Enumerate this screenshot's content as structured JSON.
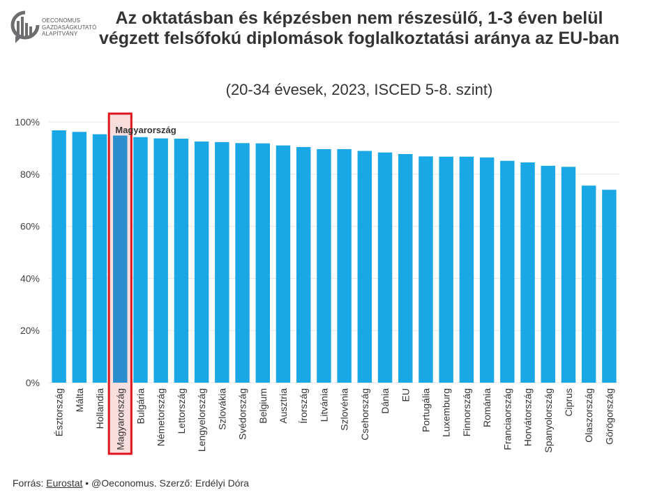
{
  "logo": {
    "line1": "OECONOMUS",
    "line2": "GAZDASÁGKUTATÓ",
    "line3": "ALAPÍTVÁNY"
  },
  "header": {
    "title": "Az oktatásban és képzésben nem részesülő, 1-3 éven belül végzett felsőfokú diplomások foglalkoztatási aránya az EU-ban",
    "subtitle": "(20-34 évesek, 2023, ISCED 5-8. szint)"
  },
  "source": {
    "prefix": "Forrás: ",
    "link": "Eurostat",
    "suffix": " • @Oeconomus. Szerző: Erdélyi Dóra"
  },
  "colors": {
    "bar": "#1aa7e6",
    "highlight_bar": "#2b8fce",
    "highlight_box": "#e0141c",
    "highlight_fill": "#f9dede",
    "grid": "#e6e6e6"
  },
  "chart_data": {
    "type": "bar",
    "title": "Az oktatásban és képzésben nem részesülő, 1-3 éven belül végzett felsőfokú diplomások foglalkoztatási aránya az EU-ban",
    "subtitle": "(20-34 évesek, 2023, ISCED 5-8. szint)",
    "xlabel": "",
    "ylabel": "",
    "ylim": [
      0,
      100
    ],
    "yticks": [
      "0%",
      "20%",
      "40%",
      "60%",
      "80%",
      "100%"
    ],
    "ytick_values": [
      0,
      20,
      40,
      60,
      80,
      100
    ],
    "grid": true,
    "highlight": "Magyarország",
    "highlight_label": "Magyarország",
    "categories": [
      "Észtország",
      "Málta",
      "Hollandia",
      "Magyarország",
      "Bulgária",
      "Németország",
      "Lettország",
      "Lengyelország",
      "Szlovákia",
      "Svédország",
      "Belgium",
      "Ausztria",
      "Írország",
      "Litvánia",
      "Szlovénia",
      "Csehország",
      "Dánia",
      "EU",
      "Portugália",
      "Luxemburg",
      "Finnország",
      "Románia",
      "Franciaország",
      "Horvátország",
      "Spanyolország",
      "Ciprus",
      "Olaszország",
      "Görögország"
    ],
    "values": [
      96.8,
      96.2,
      95.3,
      94.8,
      94.2,
      93.7,
      93.6,
      92.5,
      92.3,
      91.9,
      91.8,
      91.0,
      90.4,
      89.6,
      89.6,
      88.9,
      88.3,
      87.7,
      86.8,
      86.7,
      86.7,
      86.4,
      85.1,
      84.5,
      83.2,
      82.8,
      75.6,
      74.0
    ]
  }
}
